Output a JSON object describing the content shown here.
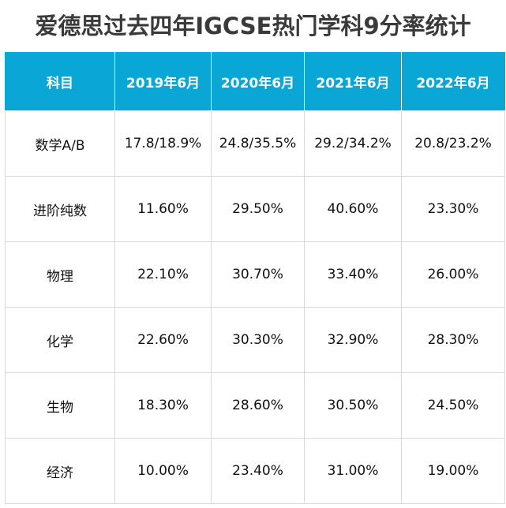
{
  "title": "爱德思过去四年IGCSE热门学科9分率统计",
  "accent_color": "#0aa6d6",
  "table": {
    "headers": [
      "科目",
      "2019年6月",
      "2020年6月",
      "2021年6月",
      "2022年6月"
    ],
    "rows": [
      [
        "数学A/B",
        "17.8/18.9%",
        "24.8/35.5%",
        "29.2/34.2%",
        "20.8/23.2%"
      ],
      [
        "进阶纯数",
        "11.60%",
        "29.50%",
        "40.60%",
        "23.30%"
      ],
      [
        "物理",
        "22.10%",
        "30.70%",
        "33.40%",
        "26.00%"
      ],
      [
        "化学",
        "22.60%",
        "30.30%",
        "32.90%",
        "28.30%"
      ],
      [
        "生物",
        "18.30%",
        "28.60%",
        "30.50%",
        "24.50%"
      ],
      [
        "经济",
        "10.00%",
        "23.40%",
        "31.00%",
        "19.00%"
      ]
    ]
  }
}
